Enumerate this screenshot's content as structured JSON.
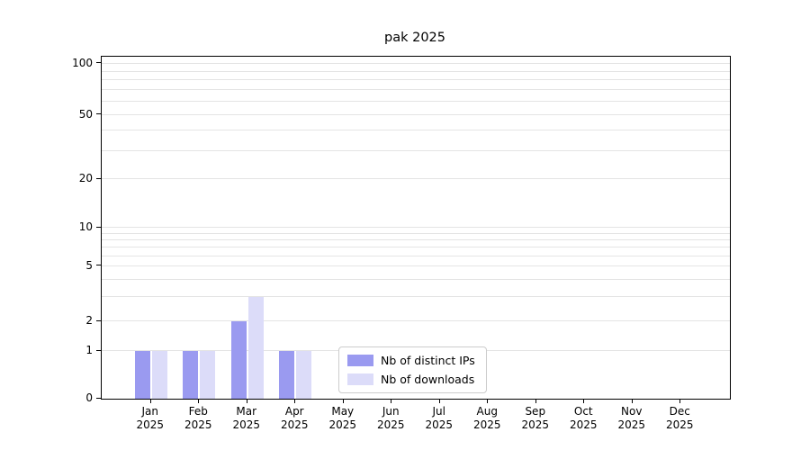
{
  "chart_data": {
    "type": "bar",
    "title": "pak 2025",
    "categories": [
      {
        "month": "Jan",
        "year": "2025"
      },
      {
        "month": "Feb",
        "year": "2025"
      },
      {
        "month": "Mar",
        "year": "2025"
      },
      {
        "month": "Apr",
        "year": "2025"
      },
      {
        "month": "May",
        "year": "2025"
      },
      {
        "month": "Jun",
        "year": "2025"
      },
      {
        "month": "Jul",
        "year": "2025"
      },
      {
        "month": "Aug",
        "year": "2025"
      },
      {
        "month": "Sep",
        "year": "2025"
      },
      {
        "month": "Oct",
        "year": "2025"
      },
      {
        "month": "Nov",
        "year": "2025"
      },
      {
        "month": "Dec",
        "year": "2025"
      }
    ],
    "series": [
      {
        "name": "Nb of distinct IPs",
        "color": "#9a9af0",
        "values": [
          1,
          1,
          2,
          1,
          0,
          0,
          0,
          0,
          0,
          0,
          0,
          0
        ]
      },
      {
        "name": "Nb of downloads",
        "color": "#dcdcf9",
        "values": [
          1,
          1,
          3,
          1,
          0,
          0,
          0,
          0,
          0,
          0,
          0,
          0
        ]
      }
    ],
    "y_ticks": [
      0,
      1,
      2,
      5,
      10,
      20,
      50,
      100
    ],
    "grid_values": [
      1,
      2,
      3,
      4,
      5,
      6,
      7,
      8,
      9,
      10,
      20,
      30,
      40,
      50,
      60,
      70,
      80,
      90,
      100
    ],
    "ylim": [
      0,
      100
    ],
    "y_scale": "symlog",
    "grid": "on",
    "legend_position": "lower center",
    "xlabel": "",
    "ylabel": ""
  }
}
